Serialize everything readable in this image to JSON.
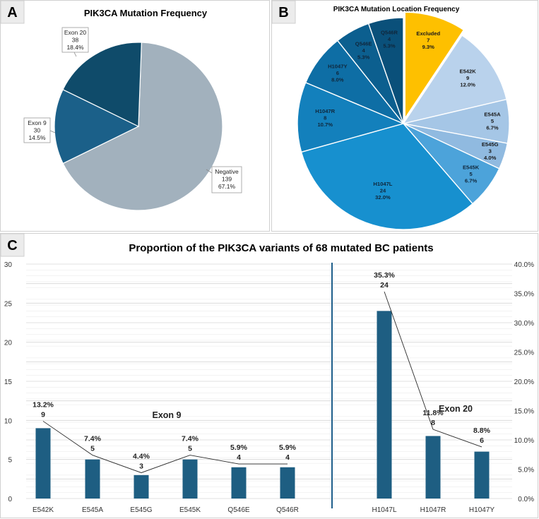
{
  "colors": {
    "negative": "#a2b1bd",
    "exon9": "#1b6089",
    "exon20": "#0f4b6a",
    "bar": "#1e5e82",
    "excluded": "#fec000",
    "panel_border": "#d0d0d0",
    "divider": "#1f5f8b"
  },
  "panel_labels": {
    "a": "A",
    "b": "B",
    "c": "C"
  },
  "chart_data": [
    {
      "type": "pie",
      "title": "PIK3CA Mutation Frequency",
      "slices": [
        {
          "name": "Negative",
          "value": 139,
          "percent": "67.1%",
          "color": "#a2b1bd"
        },
        {
          "name": "Exon 9",
          "value": 30,
          "percent": "14.5%",
          "color": "#1b6089"
        },
        {
          "name": "Exon 20",
          "value": 38,
          "percent": "18.4%",
          "color": "#0f4b6a"
        }
      ]
    },
    {
      "type": "pie",
      "title": "PIK3CA Mutation Location Frequency",
      "slices": [
        {
          "name": "Excluded",
          "value": 7,
          "percent": "9.3%",
          "color": "#fec000",
          "exploded": true
        },
        {
          "name": "E542K",
          "value": 9,
          "percent": "12.0%",
          "color": "#b9d2ec"
        },
        {
          "name": "E545A",
          "value": 5,
          "percent": "6.7%",
          "color": "#a5c6e6"
        },
        {
          "name": "E545G",
          "value": 3,
          "percent": "4.0%",
          "color": "#90bae0"
        },
        {
          "name": "E545K",
          "value": 5,
          "percent": "6.7%",
          "color": "#4ca3da"
        },
        {
          "name": "H1047L",
          "value": 24,
          "percent": "32.0%",
          "color": "#1790cf"
        },
        {
          "name": "H1047R",
          "value": 8,
          "percent": "10.7%",
          "color": "#1380bc"
        },
        {
          "name": "H1047Y",
          "value": 6,
          "percent": "8.0%",
          "color": "#0e6ea5"
        },
        {
          "name": "Q546E",
          "value": 4,
          "percent": "5.3%",
          "color": "#0c5f8f"
        },
        {
          "name": "Q546R",
          "value": 4,
          "percent": "5.3%",
          "color": "#0a507a"
        }
      ]
    },
    {
      "type": "bar",
      "title": "Proportion of the PIK3CA variants of 68 mutated BC patients",
      "categories": [
        "E542K",
        "E545A",
        "E545G",
        "E545K",
        "Q546E",
        "Q546R",
        "H1047L",
        "H1047R",
        "H1047Y"
      ],
      "values": [
        9,
        5,
        3,
        5,
        4,
        4,
        24,
        8,
        6
      ],
      "percent_labels": [
        "13.2%",
        "7.4%",
        "4.4%",
        "7.4%",
        "5.9%",
        "5.9%",
        "35.3%",
        "11.8%",
        "8.8%"
      ],
      "percent_values": [
        13.2,
        7.4,
        4.4,
        7.4,
        5.9,
        5.9,
        35.3,
        11.8,
        8.8
      ],
      "groups": [
        {
          "name": "Exon 9",
          "from": 0,
          "to": 5
        },
        {
          "name": "Exon 20",
          "from": 6,
          "to": 8
        }
      ],
      "ylim": [
        0,
        30
      ],
      "yticks": [
        "0",
        "5",
        "10",
        "15",
        "20",
        "25",
        "30"
      ],
      "y2lim": [
        0,
        40
      ],
      "y2ticks": [
        "0.0%",
        "5.0%",
        "10.0%",
        "15.0%",
        "20.0%",
        "25.0%",
        "30.0%",
        "35.0%",
        "40.0%"
      ]
    }
  ]
}
